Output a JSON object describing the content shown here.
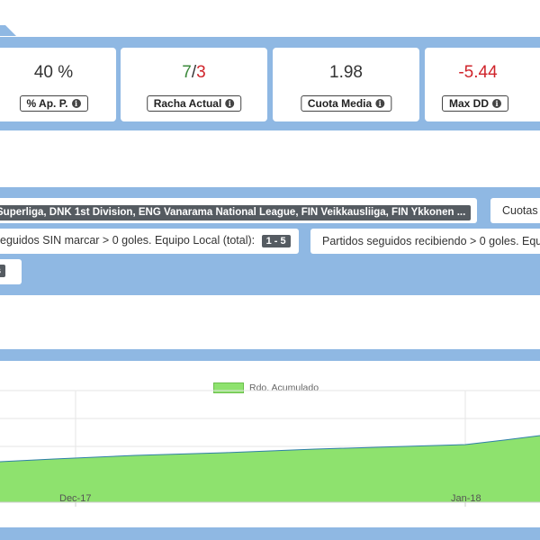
{
  "stats": [
    {
      "value": "40 %",
      "label": "% Ap. P."
    },
    {
      "value_pos": "7",
      "value_sep": "/",
      "value_neg": "3",
      "label": "Racha Actual"
    },
    {
      "value": "1.98",
      "label": "Cuota Media"
    },
    {
      "value": "-5.44",
      "label": "Max DD"
    }
  ],
  "filters": {
    "leagues": "Superliga, DNK 1st Division, ENG Vanarama National League, FIN Veikkausliiga, FIN Ykkonen ...",
    "cuotas": "Cuotas",
    "sin_marcar_label": "eguidos SIN marcar > 0 goles. Equipo Local (total):",
    "sin_marcar_range": "1 - 5",
    "recibiendo_label": "Partidos seguidos recibiendo > 0 goles. Equip",
    "fragment": "s"
  },
  "chart_data": {
    "type": "area",
    "legend": [
      "Rdo. Acumulado"
    ],
    "x_ticks": [
      "Dec-17",
      "Jan-18"
    ],
    "series": [
      {
        "name": "Rdo. Acumulado",
        "color": "#8ee26e",
        "line_color": "#2f7fa8"
      }
    ],
    "grid": true
  }
}
